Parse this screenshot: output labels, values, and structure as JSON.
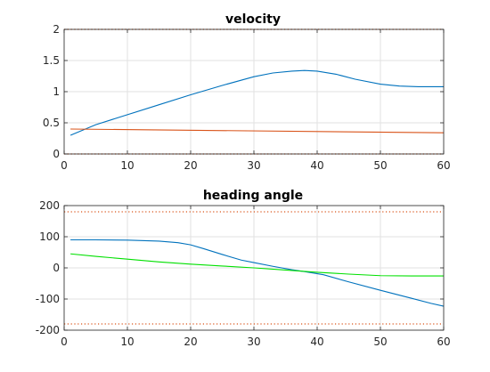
{
  "chart_data": [
    {
      "type": "line",
      "title": "velocity",
      "xlabel": "",
      "ylabel": "",
      "xlim": [
        0,
        60
      ],
      "ylim": [
        0,
        2
      ],
      "xticks": [
        0,
        10,
        20,
        30,
        40,
        50,
        60
      ],
      "yticks": [
        0,
        0.5,
        1,
        1.5,
        2
      ],
      "xtick_labels": [
        "0",
        "10",
        "20",
        "30",
        "40",
        "50",
        "60"
      ],
      "ytick_labels": [
        "0",
        "0.5",
        "1",
        "1.5",
        "2"
      ],
      "grid": true,
      "series": [
        {
          "color": "#0072BD",
          "style": "solid",
          "x": [
            1,
            5,
            10,
            15,
            20,
            25,
            30,
            33,
            36,
            38,
            40,
            43,
            46,
            50,
            53,
            56,
            60
          ],
          "y": [
            0.3,
            0.47,
            0.63,
            0.79,
            0.95,
            1.1,
            1.24,
            1.3,
            1.33,
            1.34,
            1.33,
            1.28,
            1.2,
            1.12,
            1.09,
            1.08,
            1.08
          ]
        },
        {
          "color": "#D95319",
          "style": "solid",
          "x": [
            1,
            60
          ],
          "y": [
            0.4,
            0.34
          ]
        },
        {
          "color": "#D95319",
          "style": "dotted",
          "x": [
            0,
            60
          ],
          "y": [
            2,
            2
          ]
        },
        {
          "color": "#D95319",
          "style": "dotted",
          "x": [
            0,
            60
          ],
          "y": [
            0,
            0
          ]
        }
      ]
    },
    {
      "type": "line",
      "title": "heading angle",
      "xlabel": "",
      "ylabel": "",
      "xlim": [
        0,
        60
      ],
      "ylim": [
        -200,
        200
      ],
      "xticks": [
        0,
        10,
        20,
        30,
        40,
        50,
        60
      ],
      "yticks": [
        -200,
        -100,
        0,
        100,
        200
      ],
      "xtick_labels": [
        "0",
        "10",
        "20",
        "30",
        "40",
        "50",
        "60"
      ],
      "ytick_labels": [
        "-200",
        "-100",
        "0",
        "100",
        "200"
      ],
      "grid": true,
      "series": [
        {
          "color": "#0072BD",
          "style": "solid",
          "x": [
            1,
            5,
            10,
            15,
            18,
            20,
            22,
            25,
            28,
            30,
            33,
            36,
            38,
            41,
            45,
            50,
            55,
            58,
            60
          ],
          "y": [
            90,
            90,
            89,
            86,
            81,
            74,
            62,
            43,
            25,
            17,
            5,
            -6,
            -12,
            -22,
            -45,
            -72,
            -98,
            -114,
            -123
          ]
        },
        {
          "color": "#00E000",
          "style": "solid",
          "x": [
            1,
            5,
            10,
            15,
            20,
            25,
            30,
            35,
            40,
            45,
            50,
            55,
            60
          ],
          "y": [
            45,
            37,
            28,
            19,
            12,
            6,
            0,
            -7,
            -14,
            -20,
            -25,
            -26,
            -26
          ]
        },
        {
          "color": "#D95319",
          "style": "dotted",
          "x": [
            0,
            60
          ],
          "y": [
            180,
            180
          ]
        },
        {
          "color": "#D95319",
          "style": "dotted",
          "x": [
            0,
            60
          ],
          "y": [
            -180,
            -180
          ]
        }
      ]
    }
  ]
}
